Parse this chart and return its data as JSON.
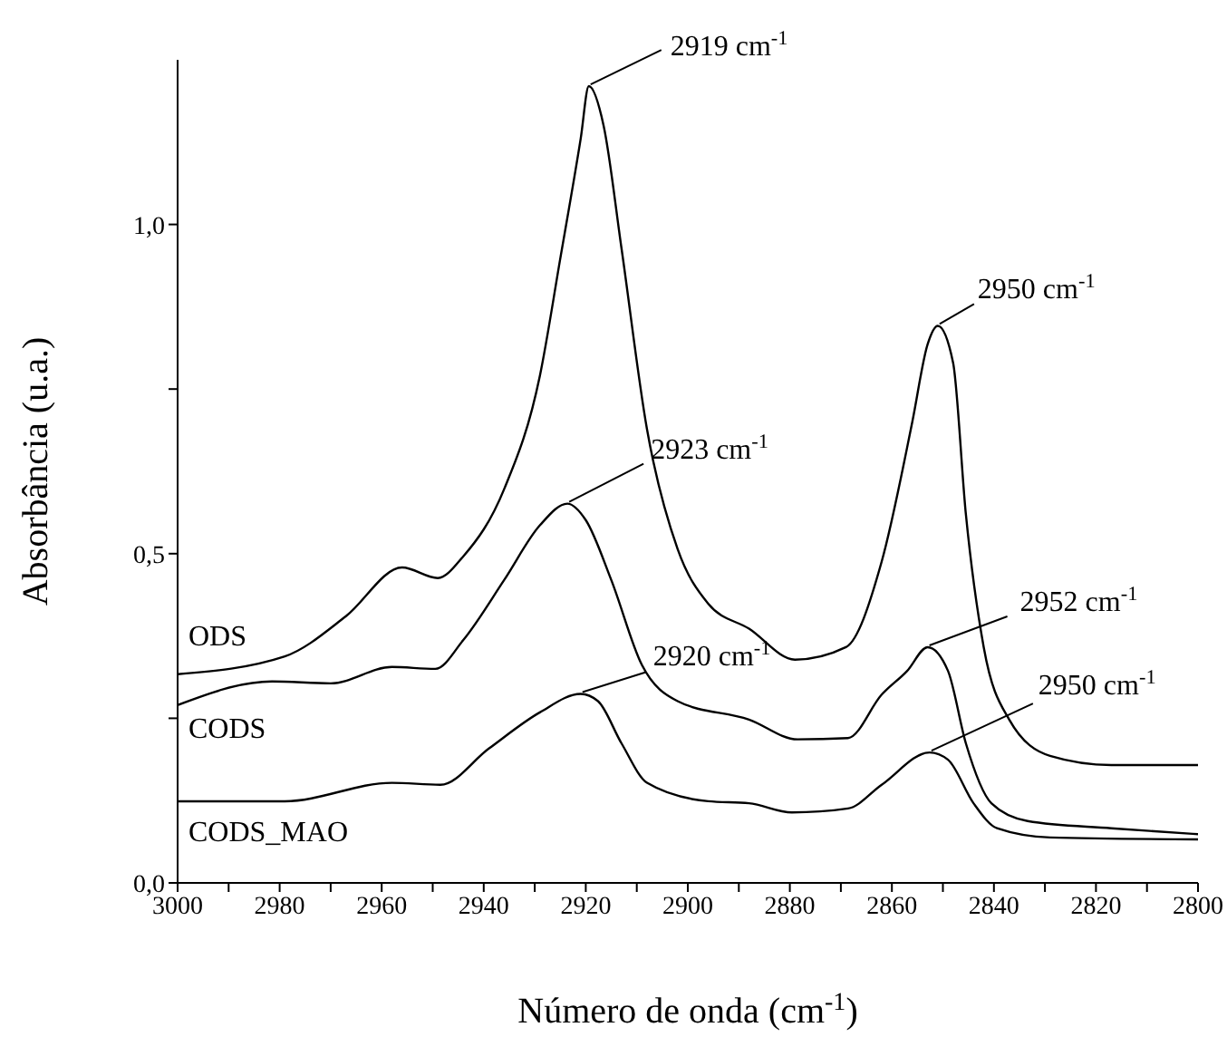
{
  "chart_data": {
    "type": "line",
    "xlabel": "Número de onda (cm$^{-1}$)",
    "ylabel": "Absorbância (u.a.)",
    "xlim": [
      3000,
      2800
    ],
    "xticks": [
      3000,
      {
        "value": 2990,
        "label": null
      },
      2980,
      {
        "value": 2970,
        "label": null
      },
      2960,
      {
        "value": 2950,
        "label": null
      },
      2940,
      {
        "value": 2930,
        "label": null
      },
      2920,
      {
        "value": 2910,
        "label": null
      },
      2900,
      {
        "value": 2890,
        "label": null
      },
      2880,
      {
        "value": 2870,
        "label": null
      },
      2860,
      {
        "value": 2850,
        "label": null
      },
      2840,
      {
        "value": 2830,
        "label": null
      },
      2820,
      {
        "value": 2810,
        "label": null
      },
      2800
    ],
    "ylim": [
      0,
      1.25
    ],
    "yticks": [
      {
        "value": 0,
        "label": "0,0"
      },
      {
        "value": 0.25,
        "label": null
      },
      {
        "value": 0.5,
        "label": "0,5"
      },
      {
        "value": 0.75,
        "label": null
      },
      {
        "value": 1,
        "label": "1,0"
      }
    ],
    "series": [
      {
        "name": "ODS",
        "color": "#000000",
        "x": [
          3000,
          2979,
          2967,
          2956,
          2949,
          2944,
          2936,
          2929,
          2925,
          2921,
          2919.4,
          2916.5,
          2913,
          2908,
          2902,
          2896,
          2888,
          2879,
          2869,
          2862,
          2856,
          2853,
          2851,
          2848,
          2845.5,
          2842,
          2837,
          2829,
          2817,
          2800
        ],
        "values": [
          0.317,
          0.344,
          0.405,
          0.479,
          0.463,
          0.496,
          0.598,
          0.77,
          0.948,
          1.13,
          1.21,
          1.15,
          0.964,
          0.689,
          0.507,
          0.424,
          0.386,
          0.339,
          0.358,
          0.488,
          0.7,
          0.818,
          0.846,
          0.79,
          0.56,
          0.358,
          0.248,
          0.193,
          0.179,
          0.179
        ]
      },
      {
        "name": "CODS",
        "color": "#000000",
        "x": [
          3000,
          2981.5,
          2970,
          2958,
          2949.5,
          2944,
          2936,
          2929,
          2923.6,
          2920,
          2915,
          2909,
          2902,
          2888,
          2878.5,
          2868.6,
          2862,
          2857,
          2853,
          2849,
          2845.5,
          2840.5,
          2833.4,
          2817,
          2800
        ],
        "values": [
          0.27,
          0.306,
          0.303,
          0.328,
          0.325,
          0.369,
          0.46,
          0.543,
          0.576,
          0.551,
          0.46,
          0.331,
          0.276,
          0.248,
          0.218,
          0.22,
          0.286,
          0.322,
          0.358,
          0.322,
          0.212,
          0.121,
          0.094,
          0.083,
          0.074
        ]
      },
      {
        "name": "CODS_MAO",
        "color": "#000000",
        "x": [
          3000,
          2979,
          2958,
          2948.5,
          2939,
          2929,
          2921,
          2917.6,
          2913,
          2908,
          2896,
          2888,
          2879.6,
          2868.6,
          2862,
          2852.6,
          2849,
          2844,
          2839.4,
          2829,
          2800
        ],
        "values": [
          0.124,
          0.124,
          0.152,
          0.149,
          0.204,
          0.259,
          0.287,
          0.276,
          0.212,
          0.152,
          0.124,
          0.121,
          0.107,
          0.113,
          0.149,
          0.198,
          0.187,
          0.121,
          0.083,
          0.069,
          0.066
        ]
      }
    ],
    "annotations": [
      {
        "text": "2919 cm$^{-1}$",
        "x": 2919.4,
        "y": 1.21
      },
      {
        "text": "2923 cm$^{-1}$",
        "x": 2923.6,
        "y": 0.576
      },
      {
        "text": "2920 cm$^{-1}$",
        "x": 2921,
        "y": 0.287
      },
      {
        "text": "2950 cm$^{-1}$",
        "x": 2851,
        "y": 0.846
      },
      {
        "text": "2952 cm$^{-1}$",
        "x": 2853,
        "y": 0.358
      },
      {
        "text": "2950 cm$^{-1}$",
        "x": 2852.6,
        "y": 0.198
      }
    ]
  }
}
